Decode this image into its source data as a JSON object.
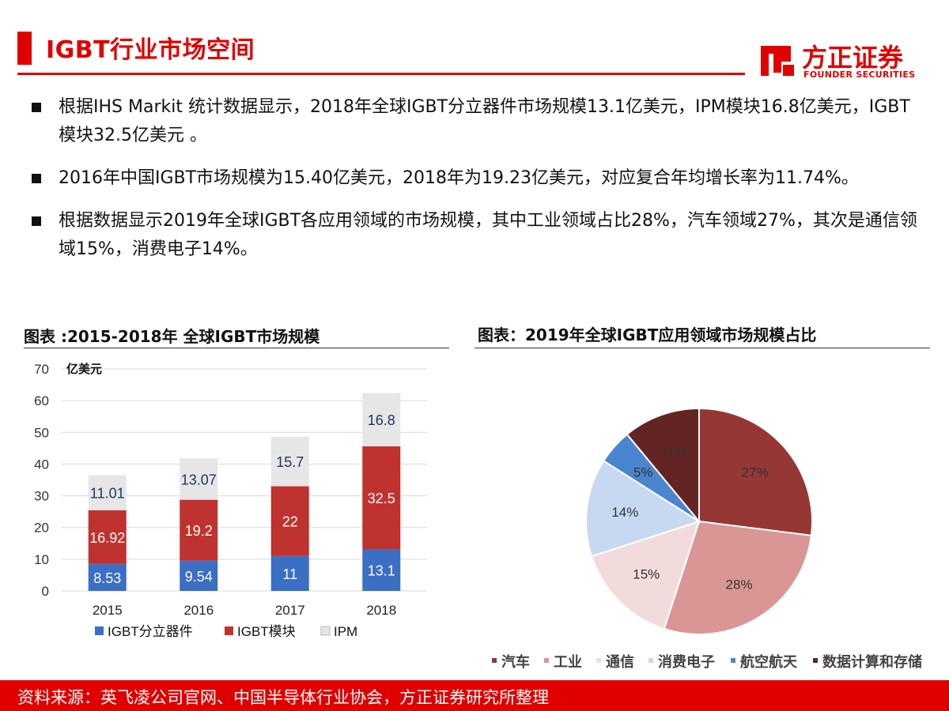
{
  "header": {
    "title": "IGBT行业市场空间",
    "logo_cn": "方正证券",
    "logo_en": "FOUNDER SECURITIES"
  },
  "bullets": [
    "根据IHS Markit 统计数据显示，2018年全球IGBT分立器件市场规模13.1亿美元，IPM模块16.8亿美元，IGBT模块32.5亿美元 。",
    "2016年中国IGBT市场规模为15.40亿美元，2018年为19.23亿美元，对应复合年均增长率为11.74%。",
    "根据数据显示2019年全球IGBT各应用领域的市场规模，其中工业领域占比28%，汽车领域27%，其次是通信领域15%，消费电子14%。"
  ],
  "left_chart_title": "图表 :2015-2018年 全球IGBT市场规模",
  "right_chart_title": "图表：2019年全球IGBT应用领域市场规模占比",
  "chart_data": [
    {
      "type": "bar",
      "stacked": true,
      "categories": [
        "2015",
        "2016",
        "2017",
        "2018"
      ],
      "ylabel": "亿美元",
      "ylim": [
        0,
        70
      ],
      "yticks": [
        0,
        10,
        20,
        30,
        40,
        50,
        60,
        70
      ],
      "grid": true,
      "legend": "bottom",
      "series": [
        {
          "name": "IGBT分立器件",
          "values": [
            8.53,
            9.54,
            11,
            13.1
          ],
          "labels": [
            "8.53",
            "9.54",
            "11",
            "13.1"
          ],
          "color": "#3a6fc4"
        },
        {
          "name": "IGBT模块",
          "values": [
            16.92,
            19.2,
            22,
            32.5
          ],
          "labels": [
            "16.92",
            "19.2",
            "22",
            "32.5"
          ],
          "color": "#c0322f"
        },
        {
          "name": "IPM",
          "values": [
            11.01,
            13.07,
            15.7,
            16.8
          ],
          "labels": [
            "11.01",
            "13.07",
            "15.7",
            "16.8"
          ],
          "color": "#e6e6e6"
        }
      ]
    },
    {
      "type": "pie",
      "legend": "bottom",
      "slices": [
        {
          "name": "汽车",
          "value": 27,
          "label": "27%",
          "color": "#953735"
        },
        {
          "name": "工业",
          "value": 28,
          "label": "28%",
          "color": "#d99694"
        },
        {
          "name": "通信",
          "value": 15,
          "label": "15%",
          "color": "#f2dcdb"
        },
        {
          "name": "消费电子",
          "value": 14,
          "label": "14%",
          "color": "#c6d9f1"
        },
        {
          "name": "航空航天",
          "value": 5,
          "label": "5%",
          "color": "#4a86d0"
        },
        {
          "name": "数据计算和存储",
          "value": 11,
          "label": "11%",
          "color": "#632523"
        }
      ]
    }
  ],
  "footer": {
    "source": "资料来源：英飞凌公司官网、中国半导体行业协会，方正证券研究所整理"
  }
}
